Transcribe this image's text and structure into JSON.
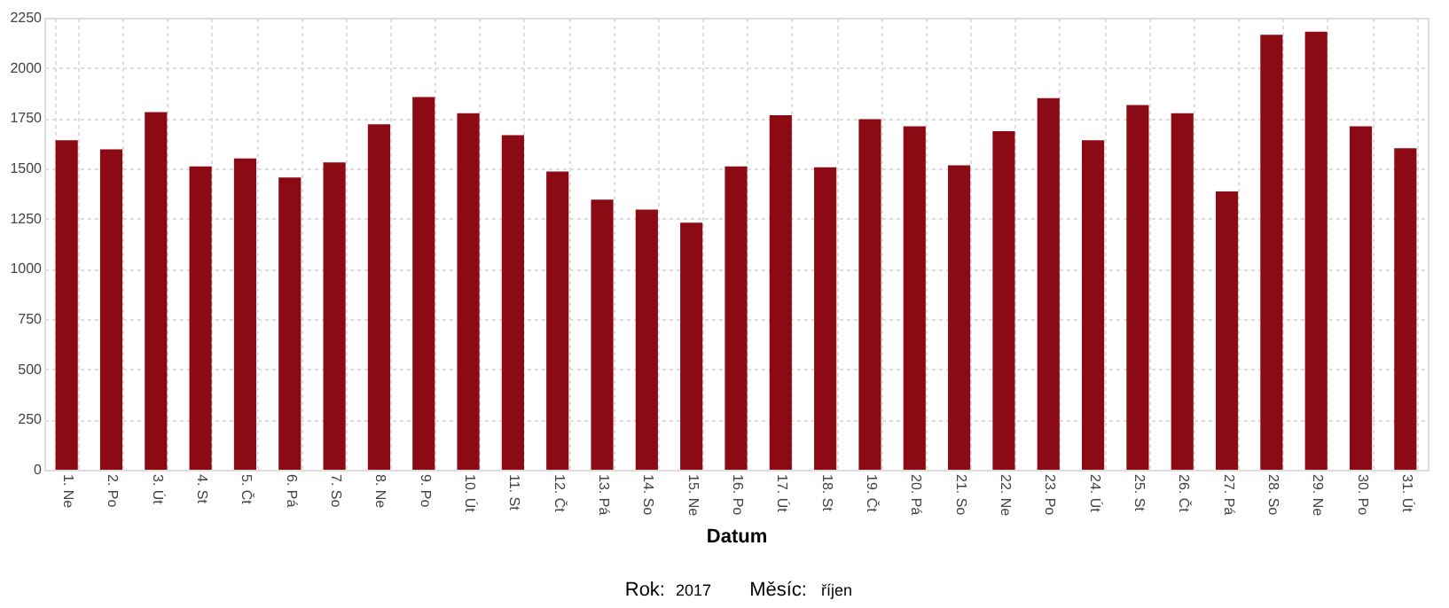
{
  "chart_data": {
    "type": "bar",
    "xlabel": "Datum",
    "categories": [
      "1. Ne",
      "2. Po",
      "3. Út",
      "4. St",
      "5. Čt",
      "6. Pá",
      "7. So",
      "8. Ne",
      "9. Po",
      "10. Út",
      "11. St",
      "12. Čt",
      "13. Pá",
      "14. So",
      "15. Ne",
      "16. Po",
      "17. Út",
      "18. St",
      "19. Čt",
      "20. Pá",
      "21. So",
      "22. Ne",
      "23. Po",
      "24. Út",
      "25. St",
      "26. Čt",
      "27. Pá",
      "28. So",
      "29. Ne",
      "30. Po",
      "31. Út"
    ],
    "values": [
      1640,
      1595,
      1780,
      1510,
      1550,
      1455,
      1530,
      1720,
      1855,
      1775,
      1665,
      1485,
      1345,
      1295,
      1230,
      1510,
      1765,
      1505,
      1745,
      1710,
      1515,
      1685,
      1850,
      1640,
      1815,
      1775,
      1385,
      2165,
      2180,
      1710,
      1600
    ],
    "color": "#8b0a14",
    "ylim": [
      0,
      2250
    ],
    "yticks": [
      0,
      250,
      500,
      750,
      1000,
      1250,
      1500,
      1750,
      2000,
      2250
    ],
    "grid": true,
    "annotations": [
      "Rok:",
      "2017",
      "Měsíc:",
      "říjen"
    ]
  }
}
